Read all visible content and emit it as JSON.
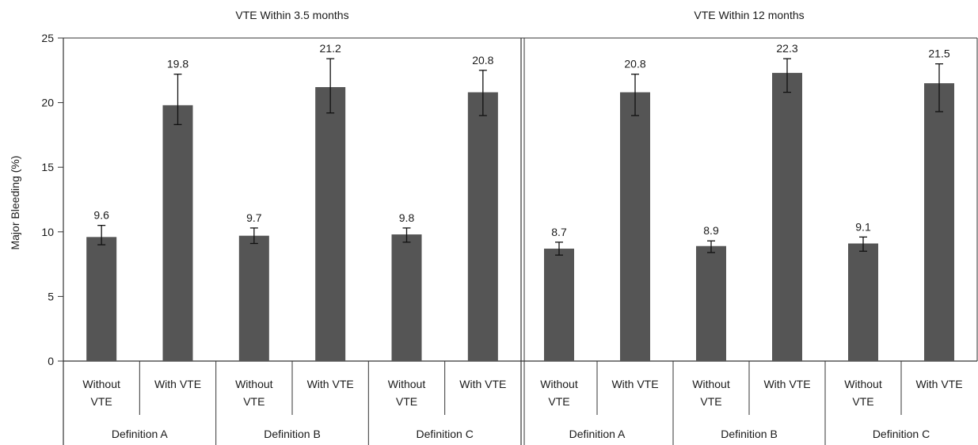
{
  "chart_data": {
    "type": "bar",
    "ylabel": "Major Bleeding (%)",
    "ylim": [
      0,
      25
    ],
    "yticks": [
      "0",
      "5",
      "10",
      "15",
      "20",
      "25"
    ],
    "grid": false,
    "bar_color": "#555555",
    "panels": [
      {
        "title": "VTE Within 3.5 months",
        "groups": [
          "Definition A",
          "Definition B",
          "Definition C"
        ],
        "bars": [
          {
            "category": "Without VTE",
            "cat_lines": [
              "Without",
              "VTE"
            ],
            "value": 9.6,
            "label": "9.6",
            "err_low": 9.0,
            "err_high": 10.5
          },
          {
            "category": "With VTE",
            "cat_lines": [
              "With VTE"
            ],
            "value": 19.8,
            "label": "19.8",
            "err_low": 18.3,
            "err_high": 22.2
          },
          {
            "category": "Without VTE",
            "cat_lines": [
              "Without",
              "VTE"
            ],
            "value": 9.7,
            "label": "9.7",
            "err_low": 9.1,
            "err_high": 10.3
          },
          {
            "category": "With VTE",
            "cat_lines": [
              "With VTE"
            ],
            "value": 21.2,
            "label": "21.2",
            "err_low": 19.2,
            "err_high": 23.4
          },
          {
            "category": "Without VTE",
            "cat_lines": [
              "Without",
              "VTE"
            ],
            "value": 9.8,
            "label": "9.8",
            "err_low": 9.2,
            "err_high": 10.3
          },
          {
            "category": "With VTE",
            "cat_lines": [
              "With VTE"
            ],
            "value": 20.8,
            "label": "20.8",
            "err_low": 19.0,
            "err_high": 22.5
          }
        ]
      },
      {
        "title": "VTE Within 12 months",
        "groups": [
          "Definition A",
          "Definition B",
          "Definition  C"
        ],
        "bars": [
          {
            "category": "Without VTE",
            "cat_lines": [
              "Without",
              "VTE"
            ],
            "value": 8.7,
            "label": "8.7",
            "err_low": 8.2,
            "err_high": 9.2
          },
          {
            "category": "With VTE",
            "cat_lines": [
              "With VTE"
            ],
            "value": 20.8,
            "label": "20.8",
            "err_low": 19.0,
            "err_high": 22.2
          },
          {
            "category": "Without VTE",
            "cat_lines": [
              "Without",
              "VTE"
            ],
            "value": 8.9,
            "label": "8.9",
            "err_low": 8.4,
            "err_high": 9.3
          },
          {
            "category": "With VTE",
            "cat_lines": [
              "With VTE"
            ],
            "value": 22.3,
            "label": "22.3",
            "err_low": 20.8,
            "err_high": 23.4
          },
          {
            "category": "Without VTE",
            "cat_lines": [
              "Without",
              "VTE"
            ],
            "value": 9.1,
            "label": "9.1",
            "err_low": 8.5,
            "err_high": 9.6
          },
          {
            "category": "With VTE",
            "cat_lines": [
              "With VTE"
            ],
            "value": 21.5,
            "label": "21.5",
            "err_low": 19.3,
            "err_high": 23.0
          }
        ]
      }
    ]
  }
}
